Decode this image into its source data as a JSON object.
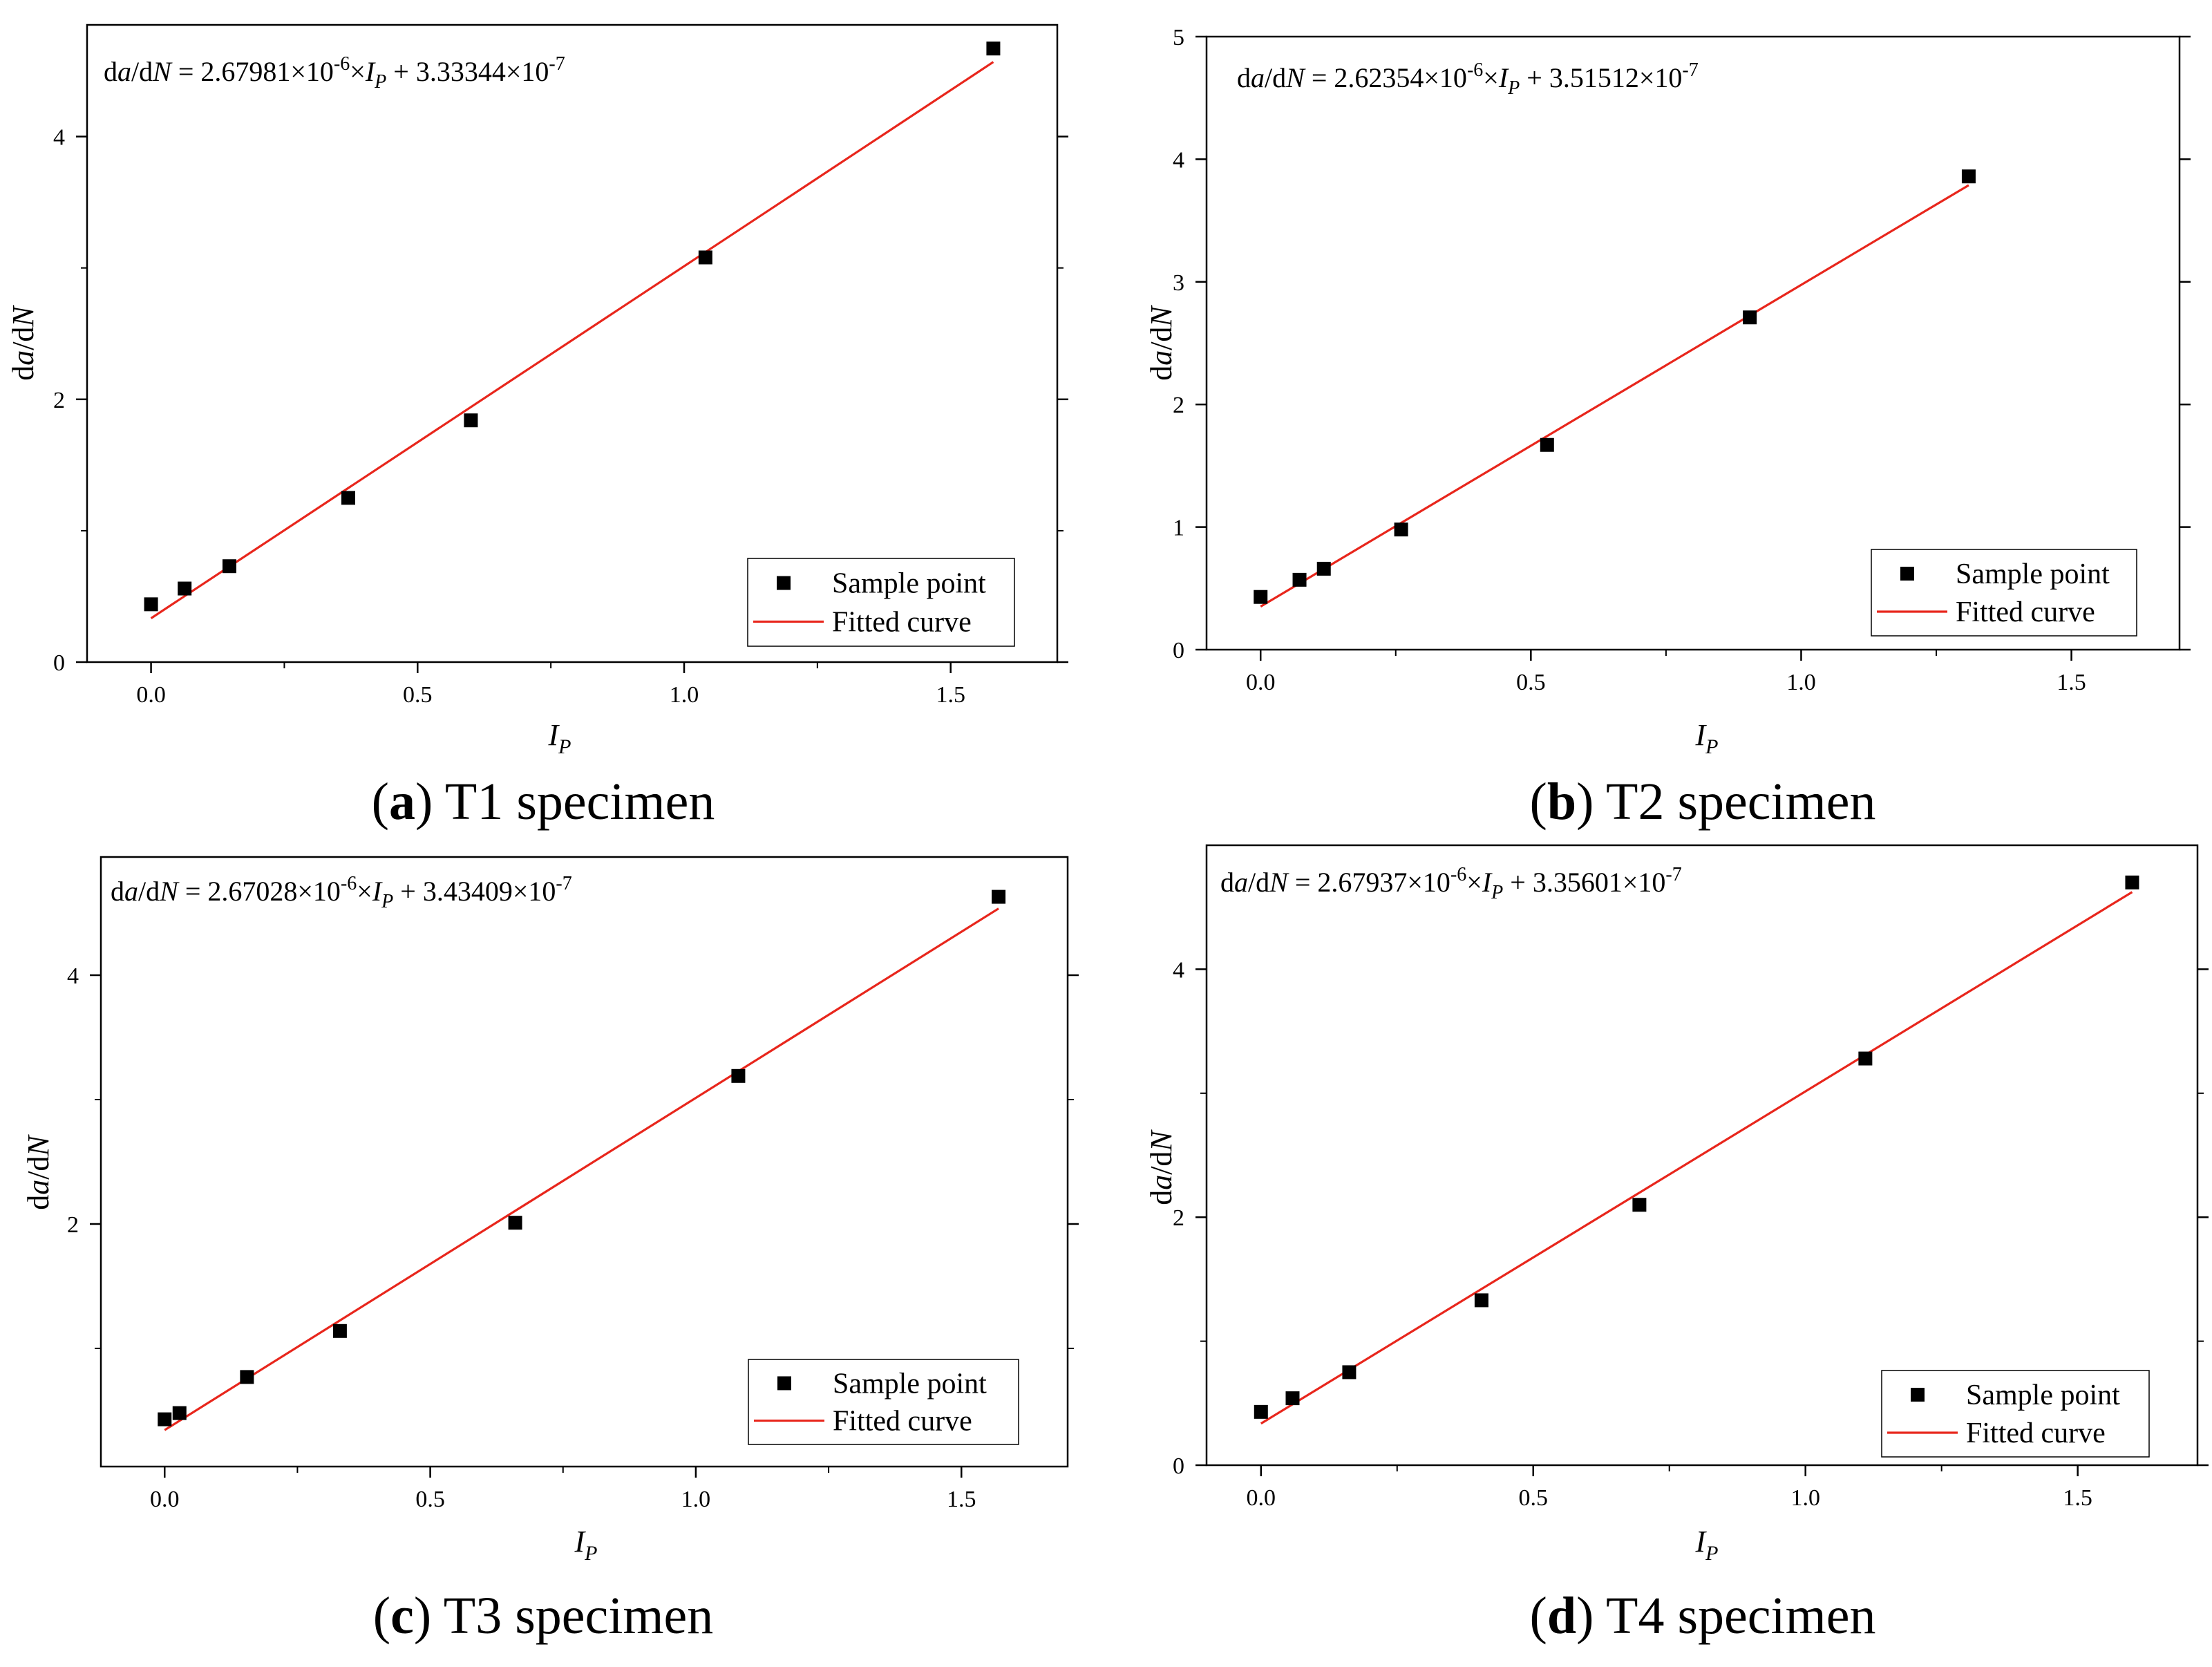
{
  "figure": {
    "description_panels": 4
  },
  "chart_data": [
    {
      "type": "scatter",
      "panel_letter": "a",
      "caption": "T1 specimen",
      "equation": {
        "lhs_d1": "d",
        "lhs_a": "a",
        "lhs_mid": "/d",
        "lhs_N": "N",
        "mid": " = 2.67981×10",
        "exp1": "-6",
        "times": "×",
        "var": "I",
        "sub": "P",
        "plus": " + 3.33344×10",
        "exp2": "-7"
      },
      "xlabel": {
        "main": "I",
        "sub": "P"
      },
      "ylabel": {
        "d1": "d",
        "a": "a",
        "mid": "/d",
        "N": "N"
      },
      "xlim": [
        -0.12,
        1.7
      ],
      "ylim": [
        0,
        4.85
      ],
      "xticks": [
        {
          "v": 0.0,
          "label": "0.0"
        },
        {
          "v": 0.5,
          "label": "0.5"
        },
        {
          "v": 1.0,
          "label": "1.0"
        },
        {
          "v": 1.5,
          "label": "1.5"
        }
      ],
      "yticks": [
        {
          "v": 0,
          "label": "0"
        },
        {
          "v": 2,
          "label": "2"
        },
        {
          "v": 4,
          "label": "4"
        }
      ],
      "yminor": [
        1,
        3
      ],
      "xminor": [
        0.25,
        0.75,
        1.25
      ],
      "series": [
        {
          "name": "Sample point",
          "kind": "scatter",
          "x": [
            0.0,
            0.063,
            0.147,
            0.37,
            0.6,
            1.04,
            1.58
          ],
          "y": [
            0.44,
            0.56,
            0.73,
            1.25,
            1.84,
            3.08,
            4.67
          ]
        },
        {
          "name": "Fitted curve",
          "kind": "line",
          "slope": 2.67981,
          "intercept": 0.333344,
          "x_range": [
            0.0,
            1.58
          ]
        }
      ],
      "legend_position": "bottom-right",
      "colors": {
        "points": "#000000",
        "fit": "#e8261c"
      }
    },
    {
      "type": "scatter",
      "panel_letter": "b",
      "caption": "T2 specimen",
      "equation": {
        "lhs_d1": "d",
        "lhs_a": "a",
        "lhs_mid": "/d",
        "lhs_N": "N",
        "mid": " = 2.62354×10",
        "exp1": "-6",
        "times": "×",
        "var": "I",
        "sub": "P",
        "plus": " + 3.51512×10",
        "exp2": "-7"
      },
      "xlabel": {
        "main": "I",
        "sub": "P"
      },
      "ylabel": {
        "d1": "d",
        "a": "a",
        "mid": "/d",
        "N": "N"
      },
      "xlim": [
        -0.1,
        1.7
      ],
      "ylim": [
        0,
        5
      ],
      "xticks": [
        {
          "v": 0.0,
          "label": "0.0"
        },
        {
          "v": 0.5,
          "label": "0.5"
        },
        {
          "v": 1.0,
          "label": "1.0"
        },
        {
          "v": 1.5,
          "label": "1.5"
        }
      ],
      "yticks": [
        {
          "v": 0,
          "label": "0"
        },
        {
          "v": 1,
          "label": "1"
        },
        {
          "v": 2,
          "label": "2"
        },
        {
          "v": 3,
          "label": "3"
        },
        {
          "v": 4,
          "label": "4"
        },
        {
          "v": 5,
          "label": "5"
        }
      ],
      "yminor": [],
      "xminor": [
        0.25,
        0.75,
        1.25
      ],
      "series": [
        {
          "name": "Sample point",
          "kind": "scatter",
          "x": [
            0.0,
            0.072,
            0.117,
            0.26,
            0.53,
            0.905,
            1.31
          ],
          "y": [
            0.43,
            0.57,
            0.66,
            0.98,
            1.67,
            2.71,
            3.86
          ]
        },
        {
          "name": "Fitted curve",
          "kind": "line",
          "slope": 2.62354,
          "intercept": 0.351512,
          "x_range": [
            0.0,
            1.31
          ]
        }
      ],
      "legend_position": "bottom-right",
      "colors": {
        "points": "#000000",
        "fit": "#e8261c"
      }
    },
    {
      "type": "scatter",
      "panel_letter": "c",
      "caption": "T3 specimen",
      "equation": {
        "lhs_d1": "d",
        "lhs_a": "a",
        "lhs_mid": "/d",
        "lhs_N": "N",
        "mid": " = 2.67028×10",
        "exp1": "-6",
        "times": "×",
        "var": "I",
        "sub": "P",
        "plus": " + 3.43409×10",
        "exp2": "-7"
      },
      "xlabel": {
        "main": "I",
        "sub": "P"
      },
      "ylabel": {
        "d1": "d",
        "a": "a",
        "mid": "/d",
        "N": "N"
      },
      "xlim": [
        -0.12,
        1.7
      ],
      "ylim": [
        0.05,
        4.95
      ],
      "xticks": [
        {
          "v": 0.0,
          "label": "0.0"
        },
        {
          "v": 0.5,
          "label": "0.5"
        },
        {
          "v": 1.0,
          "label": "1.0"
        },
        {
          "v": 1.5,
          "label": "1.5"
        }
      ],
      "yticks": [
        {
          "v": 2,
          "label": "2"
        },
        {
          "v": 4,
          "label": "4"
        }
      ],
      "yminor": [
        1,
        3
      ],
      "xminor": [
        0.25,
        0.75,
        1.25
      ],
      "series": [
        {
          "name": "Sample point",
          "kind": "scatter",
          "x": [
            0.0,
            0.028,
            0.155,
            0.33,
            0.66,
            1.08,
            1.57
          ],
          "y": [
            0.43,
            0.48,
            0.77,
            1.14,
            2.01,
            3.19,
            4.63
          ]
        },
        {
          "name": "Fitted curve",
          "kind": "line",
          "slope": 2.67028,
          "intercept": 0.343409,
          "x_range": [
            0.0,
            1.57
          ]
        }
      ],
      "legend_position": "bottom-right",
      "colors": {
        "points": "#000000",
        "fit": "#e8261c"
      }
    },
    {
      "type": "scatter",
      "panel_letter": "d",
      "caption": "T4 specimen",
      "equation": {
        "lhs_d1": "d",
        "lhs_a": "a",
        "lhs_mid": "/d",
        "lhs_N": "N",
        "mid": " = 2.67937×10",
        "exp1": "-6",
        "times": "×",
        "var": "I",
        "sub": "P",
        "plus": " + 3.35601×10",
        "exp2": "-7"
      },
      "xlabel": {
        "main": "I",
        "sub": "P"
      },
      "ylabel": {
        "d1": "d",
        "a": "a",
        "mid": "/d",
        "N": "N"
      },
      "xlim": [
        -0.1,
        1.72
      ],
      "ylim": [
        0,
        5.0
      ],
      "xticks": [
        {
          "v": 0.0,
          "label": "0.0"
        },
        {
          "v": 0.5,
          "label": "0.5"
        },
        {
          "v": 1.0,
          "label": "1.0"
        },
        {
          "v": 1.5,
          "label": "1.5"
        }
      ],
      "yticks": [
        {
          "v": 0,
          "label": "0"
        },
        {
          "v": 2,
          "label": "2"
        },
        {
          "v": 4,
          "label": "4"
        }
      ],
      "yminor": [
        1,
        3
      ],
      "xminor": [
        0.25,
        0.75,
        1.25
      ],
      "series": [
        {
          "name": "Sample point",
          "kind": "scatter",
          "x": [
            0.0,
            0.058,
            0.162,
            0.405,
            0.695,
            1.11,
            1.6
          ],
          "y": [
            0.43,
            0.54,
            0.75,
            1.33,
            2.1,
            3.28,
            4.7
          ]
        },
        {
          "name": "Fitted curve",
          "kind": "line",
          "slope": 2.67937,
          "intercept": 0.335601,
          "x_range": [
            0.0,
            1.6
          ]
        }
      ],
      "legend_position": "bottom-right",
      "colors": {
        "points": "#000000",
        "fit": "#e8261c"
      }
    }
  ]
}
